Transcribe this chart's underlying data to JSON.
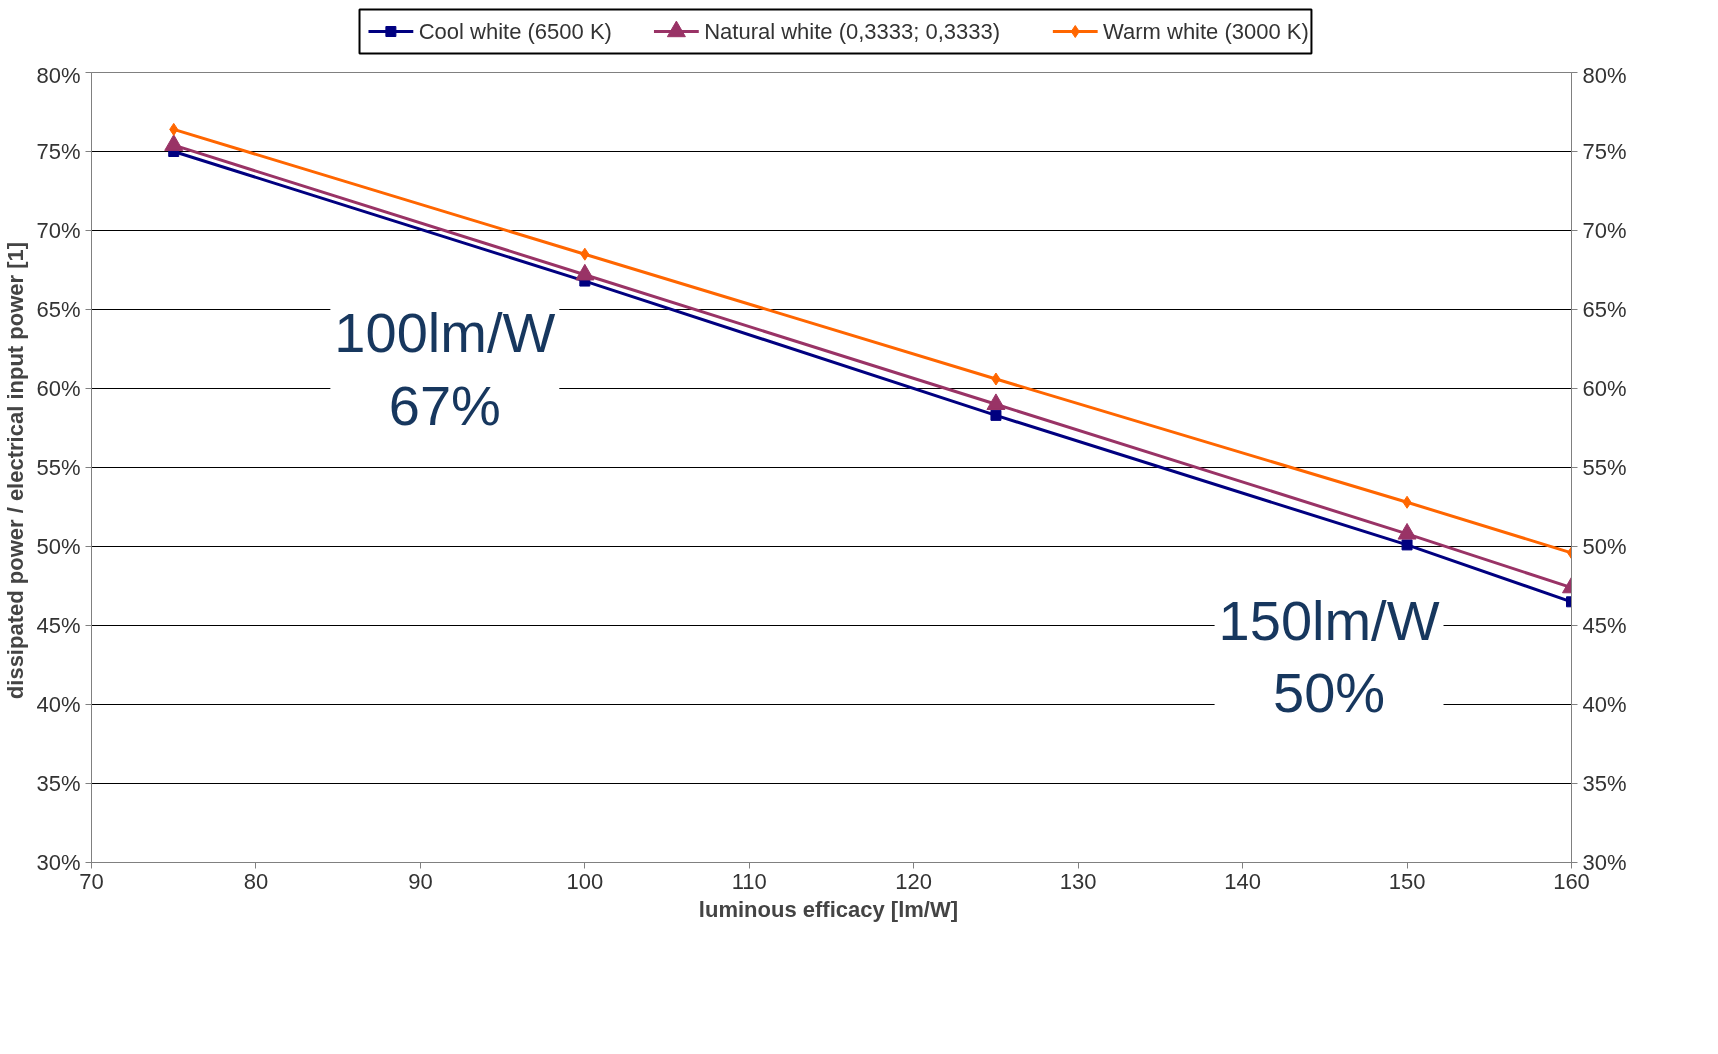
{
  "chart_data": {
    "type": "line",
    "xlabel": "luminous efficacy  [lm/W]",
    "ylabel": "dissipated power / electrical input power  [1]",
    "x": [
      75,
      100,
      125,
      150,
      160
    ],
    "series": [
      {
        "name": "Cool white (6500 K)",
        "color": "#000080",
        "marker": "square",
        "values": [
          75.0,
          66.8,
          58.3,
          50.1,
          46.5
        ]
      },
      {
        "name": "Natural white (0,3333; 0,3333)",
        "color": "#993366",
        "marker": "triangle",
        "values": [
          75.4,
          67.2,
          59.0,
          50.8,
          47.4
        ]
      },
      {
        "name": "Warm white (3000 K)",
        "color": "#ff6600",
        "marker": "diamond",
        "values": [
          76.4,
          68.5,
          60.6,
          52.8,
          49.6
        ]
      }
    ],
    "xlim": [
      70,
      160
    ],
    "xticks": [
      70,
      80,
      90,
      100,
      110,
      120,
      130,
      140,
      150,
      160
    ],
    "ylim": [
      30,
      80
    ],
    "yticks": [
      {
        "value": 30,
        "label": "30%"
      },
      {
        "value": 35,
        "label": "35%"
      },
      {
        "value": 40,
        "label": "40%"
      },
      {
        "value": 45,
        "label": "45%"
      },
      {
        "value": 50,
        "label": "50%"
      },
      {
        "value": 55,
        "label": "55%"
      },
      {
        "value": 60,
        "label": "60%"
      },
      {
        "value": 65,
        "label": "65%"
      },
      {
        "value": 70,
        "label": "70%"
      },
      {
        "value": 75,
        "label": "75%"
      },
      {
        "value": 80,
        "label": "80%"
      }
    ],
    "y2lim": [
      30,
      80
    ],
    "y2ticks": [
      {
        "value": 30,
        "label": "30%"
      },
      {
        "value": 35,
        "label": "35%"
      },
      {
        "value": 40,
        "label": "40%"
      },
      {
        "value": 45,
        "label": "45%"
      },
      {
        "value": 50,
        "label": "50%"
      },
      {
        "value": 55,
        "label": "55%"
      },
      {
        "value": 60,
        "label": "60%"
      },
      {
        "value": 65,
        "label": "65%"
      },
      {
        "value": 70,
        "label": "70%"
      },
      {
        "value": 75,
        "label": "75%"
      },
      {
        "value": 80,
        "label": "80%"
      }
    ],
    "annotations": [
      {
        "text": "100lm/W\n67%",
        "x": 100,
        "y": 67
      },
      {
        "text": "150lm/W\n50%",
        "x": 150,
        "y": 50
      }
    ],
    "grid": "y",
    "legend": "top",
    "line_style": "solid"
  }
}
